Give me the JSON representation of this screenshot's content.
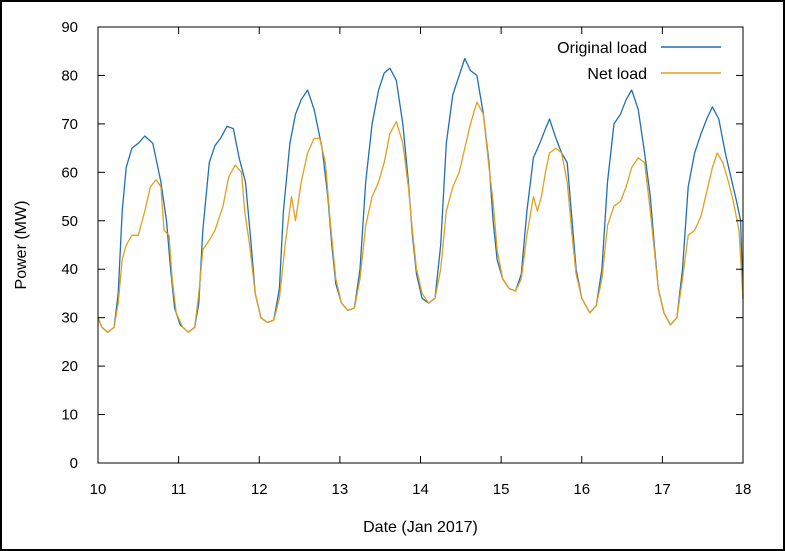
{
  "chart_data": {
    "type": "line",
    "xlabel": "Date (Jan 2017)",
    "ylabel": "Power (MW)",
    "xlim": [
      10,
      18
    ],
    "ylim": [
      0,
      90
    ],
    "xticks": [
      "10",
      "11",
      "12",
      "13",
      "14",
      "15",
      "16",
      "17",
      "18"
    ],
    "yticks": [
      "0",
      "10",
      "20",
      "30",
      "40",
      "50",
      "60",
      "70",
      "80",
      "90"
    ],
    "grid": false,
    "legend_position": "top-right",
    "series": [
      {
        "name": "Original load",
        "color": "#1f6fb4",
        "points": [
          [
            10.0,
            30
          ],
          [
            10.05,
            28
          ],
          [
            10.12,
            27
          ],
          [
            10.2,
            28
          ],
          [
            10.25,
            35
          ],
          [
            10.3,
            52
          ],
          [
            10.35,
            61
          ],
          [
            10.42,
            65
          ],
          [
            10.5,
            66
          ],
          [
            10.58,
            67.5
          ],
          [
            10.68,
            66
          ],
          [
            10.78,
            58
          ],
          [
            10.85,
            50
          ],
          [
            10.9,
            40
          ],
          [
            10.95,
            32
          ],
          [
            11.02,
            28.5
          ],
          [
            11.12,
            27
          ],
          [
            11.2,
            28
          ],
          [
            11.25,
            33
          ],
          [
            11.3,
            48
          ],
          [
            11.38,
            62
          ],
          [
            11.45,
            65.5
          ],
          [
            11.52,
            67
          ],
          [
            11.6,
            69.5
          ],
          [
            11.68,
            69
          ],
          [
            11.75,
            63
          ],
          [
            11.83,
            58
          ],
          [
            11.9,
            45
          ],
          [
            11.95,
            35
          ],
          [
            12.02,
            30
          ],
          [
            12.1,
            29
          ],
          [
            12.18,
            29.5
          ],
          [
            12.25,
            36
          ],
          [
            12.3,
            52
          ],
          [
            12.38,
            66
          ],
          [
            12.45,
            72
          ],
          [
            12.52,
            75
          ],
          [
            12.6,
            77
          ],
          [
            12.68,
            73
          ],
          [
            12.78,
            65
          ],
          [
            12.85,
            55
          ],
          [
            12.9,
            45
          ],
          [
            12.95,
            37
          ],
          [
            13.02,
            33
          ],
          [
            13.1,
            31.5
          ],
          [
            13.18,
            32
          ],
          [
            13.25,
            40
          ],
          [
            13.32,
            58
          ],
          [
            13.4,
            70
          ],
          [
            13.48,
            77
          ],
          [
            13.55,
            80.5
          ],
          [
            13.62,
            81.5
          ],
          [
            13.7,
            79
          ],
          [
            13.78,
            70
          ],
          [
            13.85,
            58
          ],
          [
            13.9,
            47
          ],
          [
            13.95,
            39
          ],
          [
            14.02,
            34
          ],
          [
            14.1,
            33
          ],
          [
            14.18,
            34
          ],
          [
            14.25,
            45
          ],
          [
            14.32,
            66
          ],
          [
            14.4,
            76
          ],
          [
            14.48,
            80
          ],
          [
            14.55,
            83.5
          ],
          [
            14.62,
            81
          ],
          [
            14.7,
            80
          ],
          [
            14.78,
            72
          ],
          [
            14.85,
            62
          ],
          [
            14.9,
            50
          ],
          [
            14.95,
            42
          ],
          [
            15.02,
            38
          ],
          [
            15.1,
            36
          ],
          [
            15.18,
            35.5
          ],
          [
            15.25,
            39
          ],
          [
            15.32,
            52
          ],
          [
            15.4,
            63
          ],
          [
            15.48,
            66
          ],
          [
            15.55,
            69
          ],
          [
            15.6,
            71
          ],
          [
            15.68,
            67
          ],
          [
            15.75,
            64
          ],
          [
            15.82,
            62
          ],
          [
            15.88,
            50
          ],
          [
            15.93,
            40
          ],
          [
            16.0,
            34
          ],
          [
            16.1,
            31
          ],
          [
            16.18,
            32.5
          ],
          [
            16.25,
            40
          ],
          [
            16.32,
            58
          ],
          [
            16.4,
            70
          ],
          [
            16.48,
            72
          ],
          [
            16.55,
            75
          ],
          [
            16.62,
            77
          ],
          [
            16.7,
            73
          ],
          [
            16.78,
            64
          ],
          [
            16.85,
            55
          ],
          [
            16.9,
            45
          ],
          [
            16.95,
            36
          ],
          [
            17.02,
            31
          ],
          [
            17.1,
            28.5
          ],
          [
            17.18,
            30
          ],
          [
            17.25,
            40
          ],
          [
            17.32,
            57
          ],
          [
            17.4,
            64
          ],
          [
            17.48,
            68
          ],
          [
            17.55,
            71
          ],
          [
            17.62,
            73.5
          ],
          [
            17.7,
            71
          ],
          [
            17.78,
            64
          ],
          [
            17.85,
            59
          ],
          [
            17.92,
            54
          ],
          [
            17.97,
            50
          ],
          [
            18.0,
            34
          ]
        ]
      },
      {
        "name": "Net load",
        "color": "#e0a020",
        "points": [
          [
            10.0,
            30
          ],
          [
            10.05,
            28
          ],
          [
            10.12,
            27
          ],
          [
            10.2,
            28
          ],
          [
            10.25,
            33
          ],
          [
            10.3,
            42
          ],
          [
            10.35,
            45
          ],
          [
            10.42,
            47
          ],
          [
            10.5,
            47
          ],
          [
            10.58,
            52
          ],
          [
            10.65,
            57
          ],
          [
            10.72,
            58.5
          ],
          [
            10.78,
            57
          ],
          [
            10.82,
            48
          ],
          [
            10.88,
            47
          ],
          [
            10.92,
            38
          ],
          [
            10.97,
            31
          ],
          [
            11.05,
            28
          ],
          [
            11.12,
            27
          ],
          [
            11.2,
            28
          ],
          [
            11.25,
            35
          ],
          [
            11.3,
            44
          ],
          [
            11.38,
            46
          ],
          [
            11.45,
            48
          ],
          [
            11.55,
            53
          ],
          [
            11.62,
            59
          ],
          [
            11.7,
            61.5
          ],
          [
            11.78,
            60
          ],
          [
            11.82,
            52
          ],
          [
            11.88,
            45
          ],
          [
            11.95,
            35
          ],
          [
            12.02,
            30
          ],
          [
            12.1,
            29
          ],
          [
            12.18,
            29.5
          ],
          [
            12.25,
            34
          ],
          [
            12.32,
            45
          ],
          [
            12.4,
            55
          ],
          [
            12.45,
            50
          ],
          [
            12.52,
            58
          ],
          [
            12.6,
            64
          ],
          [
            12.68,
            67
          ],
          [
            12.75,
            67
          ],
          [
            12.82,
            62
          ],
          [
            12.88,
            50
          ],
          [
            12.95,
            38
          ],
          [
            13.02,
            33
          ],
          [
            13.1,
            31.5
          ],
          [
            13.18,
            32
          ],
          [
            13.25,
            38
          ],
          [
            13.32,
            49
          ],
          [
            13.4,
            55
          ],
          [
            13.48,
            58
          ],
          [
            13.55,
            62
          ],
          [
            13.62,
            68
          ],
          [
            13.7,
            70.5
          ],
          [
            13.78,
            66
          ],
          [
            13.85,
            57
          ],
          [
            13.9,
            48
          ],
          [
            13.95,
            40
          ],
          [
            14.02,
            35
          ],
          [
            14.1,
            33
          ],
          [
            14.18,
            34
          ],
          [
            14.25,
            40
          ],
          [
            14.32,
            52
          ],
          [
            14.4,
            57
          ],
          [
            14.48,
            60
          ],
          [
            14.55,
            65
          ],
          [
            14.62,
            70
          ],
          [
            14.7,
            74.5
          ],
          [
            14.78,
            72
          ],
          [
            14.85,
            61
          ],
          [
            14.9,
            54
          ],
          [
            14.95,
            44
          ],
          [
            15.02,
            38
          ],
          [
            15.1,
            36
          ],
          [
            15.18,
            35.5
          ],
          [
            15.25,
            38
          ],
          [
            15.32,
            47
          ],
          [
            15.4,
            55
          ],
          [
            15.45,
            52
          ],
          [
            15.5,
            55
          ],
          [
            15.55,
            60
          ],
          [
            15.6,
            64
          ],
          [
            15.68,
            65
          ],
          [
            15.75,
            64
          ],
          [
            15.82,
            58
          ],
          [
            15.88,
            47
          ],
          [
            15.93,
            39
          ],
          [
            16.0,
            34
          ],
          [
            16.1,
            31
          ],
          [
            16.18,
            32.5
          ],
          [
            16.25,
            38
          ],
          [
            16.32,
            49
          ],
          [
            16.4,
            53
          ],
          [
            16.48,
            54
          ],
          [
            16.55,
            57
          ],
          [
            16.62,
            61
          ],
          [
            16.7,
            63
          ],
          [
            16.78,
            62
          ],
          [
            16.85,
            52
          ],
          [
            16.9,
            44
          ],
          [
            16.95,
            36
          ],
          [
            17.02,
            31
          ],
          [
            17.1,
            28.5
          ],
          [
            17.18,
            30
          ],
          [
            17.25,
            38
          ],
          [
            17.32,
            47
          ],
          [
            17.4,
            48
          ],
          [
            17.48,
            51
          ],
          [
            17.55,
            56
          ],
          [
            17.62,
            61
          ],
          [
            17.68,
            64
          ],
          [
            17.75,
            62
          ],
          [
            17.82,
            58
          ],
          [
            17.88,
            54
          ],
          [
            17.95,
            48
          ],
          [
            18.0,
            34
          ]
        ]
      }
    ]
  }
}
